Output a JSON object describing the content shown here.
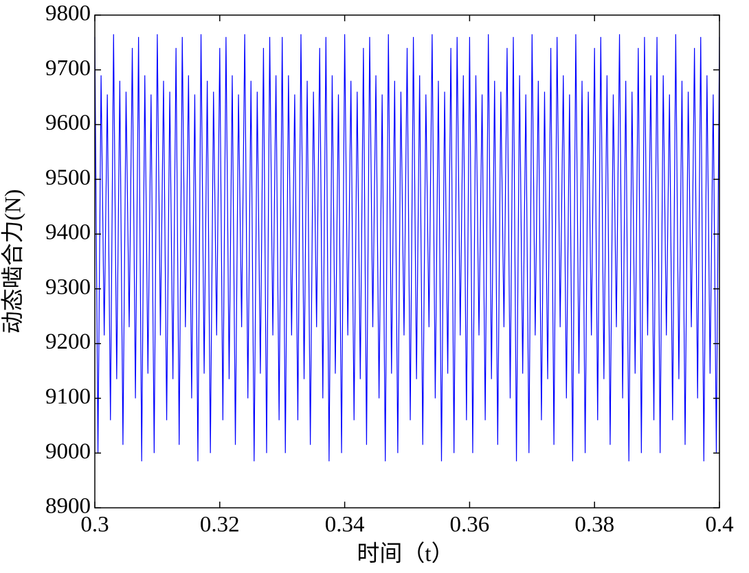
{
  "chart_data": {
    "type": "line",
    "xlabel": "时间（t）",
    "ylabel": "动态啮合力(N)",
    "color": "#0000ff",
    "xlim": [
      0.3,
      0.4
    ],
    "xticks": [
      0.3,
      0.32,
      0.34,
      0.36,
      0.38,
      0.4
    ],
    "ylim": [
      8900,
      9800
    ],
    "yticks": [
      8900,
      9000,
      9100,
      9200,
      9300,
      9400,
      9500,
      9600,
      9700,
      9800
    ],
    "x": [
      0.3,
      0.3005,
      0.301,
      0.3015,
      0.302,
      0.3025,
      0.303,
      0.3035,
      0.304,
      0.3045,
      0.305,
      0.3055,
      0.306,
      0.3065,
      0.307,
      0.3075,
      0.308,
      0.3085,
      0.309,
      0.3095,
      0.31,
      0.3105,
      0.311,
      0.3115,
      0.312,
      0.3125,
      0.313,
      0.3135,
      0.314,
      0.3145,
      0.315,
      0.3155,
      0.316,
      0.3165,
      0.317,
      0.3175,
      0.318,
      0.3185,
      0.319,
      0.3195,
      0.32,
      0.3205,
      0.321,
      0.3215,
      0.322,
      0.3225,
      0.323,
      0.3235,
      0.324,
      0.3245,
      0.325,
      0.3255,
      0.326,
      0.3265,
      0.327,
      0.3275,
      0.328,
      0.3285,
      0.329,
      0.3295,
      0.33,
      0.3305,
      0.331,
      0.3315,
      0.332,
      0.3325,
      0.333,
      0.3335,
      0.334,
      0.3345,
      0.335,
      0.3355,
      0.336,
      0.3365,
      0.337,
      0.3375,
      0.338,
      0.3385,
      0.339,
      0.3395,
      0.34,
      0.3405,
      0.341,
      0.3415,
      0.342,
      0.3425,
      0.343,
      0.3435,
      0.344,
      0.3445,
      0.345,
      0.3455,
      0.346,
      0.3465,
      0.347,
      0.3475,
      0.348,
      0.3485,
      0.349,
      0.3495,
      0.35,
      0.3505,
      0.351,
      0.3515,
      0.352,
      0.3525,
      0.353,
      0.3535,
      0.354,
      0.3545,
      0.355,
      0.3555,
      0.356,
      0.3565,
      0.357,
      0.3575,
      0.358,
      0.3585,
      0.359,
      0.3595,
      0.36,
      0.3605,
      0.361,
      0.3615,
      0.362,
      0.3625,
      0.363,
      0.3635,
      0.364,
      0.3645,
      0.365,
      0.3655,
      0.366,
      0.3665,
      0.367,
      0.3675,
      0.368,
      0.3685,
      0.369,
      0.3695,
      0.37,
      0.3705,
      0.371,
      0.3715,
      0.372,
      0.3725,
      0.373,
      0.3735,
      0.374,
      0.3745,
      0.375,
      0.3755,
      0.376,
      0.3765,
      0.377,
      0.3775,
      0.378,
      0.3785,
      0.379,
      0.3795,
      0.38,
      0.3805,
      0.381,
      0.3815,
      0.382,
      0.3825,
      0.383,
      0.3835,
      0.384,
      0.3845,
      0.385,
      0.3855,
      0.386,
      0.3865,
      0.387,
      0.3875,
      0.388,
      0.3885,
      0.389,
      0.3895,
      0.39,
      0.3905,
      0.391,
      0.3915,
      0.392,
      0.3925,
      0.393,
      0.3935,
      0.394,
      0.3945,
      0.395,
      0.3955,
      0.396,
      0.3965,
      0.397,
      0.3975,
      0.398,
      0.3985,
      0.399,
      0.3995,
      0.4
    ],
    "values": [
      9760,
      9000,
      9690,
      9215,
      9655,
      9060,
      9765,
      9135,
      9680,
      9015,
      9660,
      9230,
      9740,
      9100,
      9760,
      8985,
      9690,
      9145,
      9655,
      9000,
      9765,
      9215,
      9680,
      9060,
      9660,
      9135,
      9740,
      9015,
      9760,
      9230,
      9690,
      9100,
      9655,
      8985,
      9765,
      9145,
      9680,
      9000,
      9660,
      9215,
      9740,
      9060,
      9760,
      9135,
      9690,
      9015,
      9655,
      9230,
      9765,
      9100,
      9680,
      8985,
      9660,
      9145,
      9740,
      9000,
      9760,
      9215,
      9690,
      9060,
      9760,
      9000,
      9690,
      9215,
      9655,
      9060,
      9765,
      9135,
      9680,
      9015,
      9660,
      9230,
      9740,
      9100,
      9760,
      8985,
      9690,
      9145,
      9655,
      9000,
      9765,
      9215,
      9680,
      9060,
      9660,
      9135,
      9740,
      9015,
      9760,
      9230,
      9690,
      9100,
      9655,
      8985,
      9765,
      9145,
      9680,
      9000,
      9660,
      9215,
      9740,
      9060,
      9760,
      9135,
      9690,
      9015,
      9655,
      9230,
      9765,
      9100,
      9680,
      8985,
      9660,
      9145,
      9740,
      9000,
      9760,
      9215,
      9690,
      9060,
      9760,
      9000,
      9690,
      9215,
      9655,
      9060,
      9765,
      9135,
      9680,
      9015,
      9660,
      9230,
      9740,
      9100,
      9760,
      8985,
      9690,
      9145,
      9655,
      9000,
      9765,
      9215,
      9680,
      9060,
      9660,
      9135,
      9740,
      9015,
      9760,
      9230,
      9690,
      9100,
      9655,
      8985,
      9765,
      9145,
      9680,
      9000,
      9660,
      9215,
      9740,
      9060,
      9760,
      9135,
      9690,
      9015,
      9655,
      9230,
      9765,
      9100,
      9680,
      8985,
      9660,
      9145,
      9740,
      9000,
      9760,
      9215,
      9690,
      9060,
      9760,
      9000,
      9690,
      9215,
      9655,
      9060,
      9765,
      9135,
      9680,
      9015,
      9660,
      9230,
      9740,
      9100,
      9760,
      8985,
      9690,
      9145,
      9655,
      9000,
      9760
    ]
  }
}
